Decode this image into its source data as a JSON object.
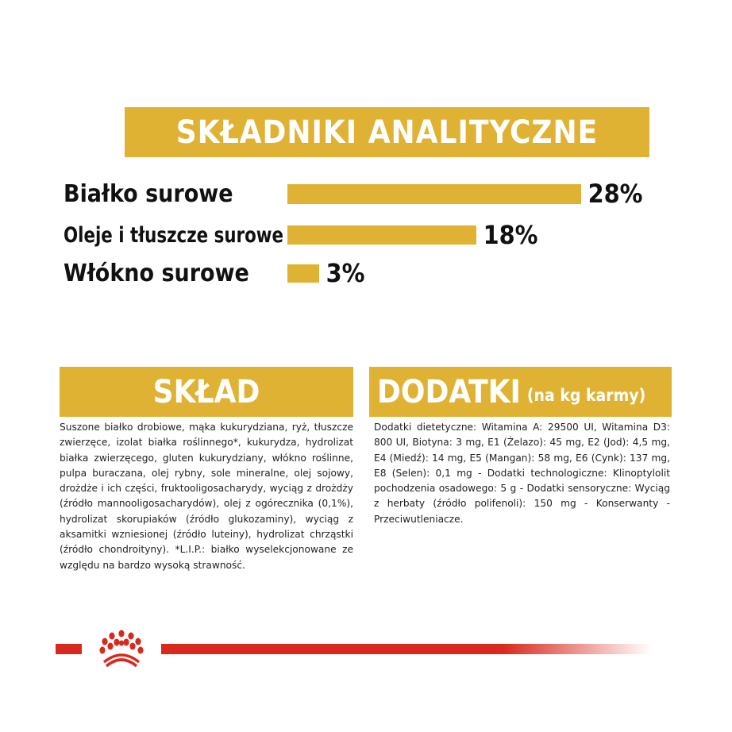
{
  "analytics": {
    "title": "SKŁADNIKI ANALITYCZNE",
    "items": [
      {
        "label": "Białko surowe",
        "value": "28%"
      },
      {
        "label": "Oleje i tłuszcze surowe",
        "value": "18%"
      },
      {
        "label": "Włókno surowe",
        "value": "3%"
      }
    ]
  },
  "chart_data": {
    "type": "bar",
    "orientation": "horizontal",
    "categories": [
      "Białko surowe",
      "Oleje i tłuszcze surowe",
      "Włókno surowe"
    ],
    "values": [
      28,
      18,
      3
    ],
    "color": "#e0b234"
  },
  "composition": {
    "title": "SKŁAD",
    "text": "Suszone białko drobiowe, mąka kukurydziana, ryż, tłuszcze zwierzęce, izolat białka roślinnego*, kukurydza, hydrolizat białka zwierzęcego, gluten kukurydziany, włókno roślinne, pulpa buraczana, olej rybny, sole mineralne, olej sojowy, drożdże i ich części, fruktooligosacharydy, wyciąg z drożdży (źródło mannooligosacharydów), olej z ogórecznika (0,1%), hydrolizat skorupiaków (źródło glukozaminy), wyciąg z aksamitki wzniesionej (źródło luteiny), hydrolizat chrząstki (źródło chondroityny). *L.I.P.: białko wyselekcjonowane ze względu na bardzo wysoką strawność."
  },
  "additives": {
    "title": "DODATKI",
    "subtitle": "(na kg karmy)",
    "text": "Dodatki dietetyczne: Witamina A: 29500 UI, Witamina D3: 800 UI, Biotyna: 3 mg, E1 (Żelazo): 45 mg, E2 (Jod): 4,5 mg, E4 (Miedź): 14 mg, E5 (Mangan): 58 mg, E6 (Cynk): 137 mg, E8 (Selen): 0,1 mg - Dodatki technologiczne: Klinoptylolit pochodzenia osadowego: 5 g - Dodatki sensoryczne: Wyciąg z herbaty (źródło polifenoli): 150 mg - Konserwanty - Przeciwutleniacze."
  },
  "brand": {
    "logo": "Royal Canin crown",
    "color": "#d9291e"
  }
}
